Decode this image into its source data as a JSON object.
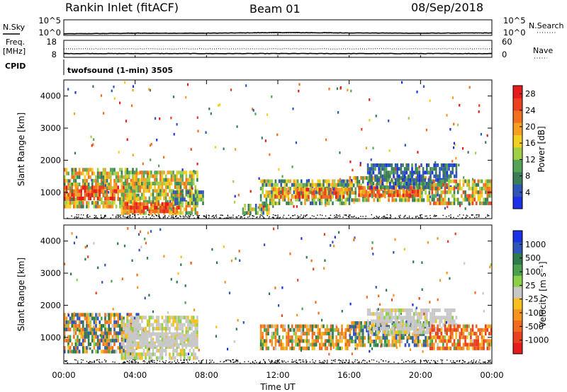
{
  "header": {
    "station": "Rankin Inlet (fitACF)",
    "beam": "Beam 01",
    "date": "08/Sep/2018"
  },
  "side_labels": {
    "nsky": "N.Sky",
    "nsearch": "N.Search",
    "freq": "Freq.",
    "freq_unit": "[MHz]",
    "nave": "Nave",
    "cpid": "CPID"
  },
  "cpid_text": "twofsound (1-min) 3505",
  "colors": {
    "axis": "#000000",
    "scatter_dots": "#000000"
  },
  "chart_data": [
    {
      "type": "line",
      "name": "noise",
      "left_ticks": [
        "10^5",
        "10^0"
      ],
      "right_ticks": [
        "10^5",
        "10^0"
      ],
      "x": [
        "00:00",
        "04:00",
        "08:00",
        "12:00",
        "16:00",
        "20:00",
        "00:00"
      ],
      "series": [
        {
          "name": "N.Sky",
          "style": "solid",
          "values_log10": [
            0.5,
            0.7,
            0.7,
            0.9,
            0.8,
            0.7,
            0.8
          ]
        },
        {
          "name": "N.Search",
          "style": "dotted",
          "values_log10": [
            0.5,
            0.6,
            0.7,
            0.8,
            0.7,
            0.7,
            0.7
          ]
        }
      ],
      "ylim": [
        0,
        5
      ]
    },
    {
      "type": "line",
      "name": "frequency",
      "left_ticks": [
        "18",
        "8"
      ],
      "right_ticks": [
        "60",
        "0"
      ],
      "x": [
        "00:00",
        "04:00",
        "08:00",
        "12:00",
        "16:00",
        "20:00",
        "00:00"
      ],
      "series": [
        {
          "name": "Freq",
          "unit": "MHz",
          "style": "solid",
          "values": [
            10.2,
            10.2,
            10.2,
            10.2,
            10.2,
            10.2,
            10.2
          ],
          "ylim": [
            8,
            18
          ]
        },
        {
          "name": "Nave",
          "style": "dotted",
          "values": [
            30,
            30,
            30,
            30,
            30,
            30,
            30
          ],
          "ylim": [
            0,
            60
          ]
        }
      ]
    },
    {
      "type": "heatmap",
      "name": "power",
      "ylabel": "Slant Range [km]",
      "ylim": [
        180,
        4500
      ],
      "yticks": [
        "1000",
        "2000",
        "3000",
        "4000"
      ],
      "xlim_hours": [
        0,
        24
      ],
      "xticks_hours": [
        0,
        4,
        8,
        12,
        16,
        20,
        24
      ],
      "colorbar": {
        "label": "Power [dB]",
        "ticks": [
          "4",
          "8",
          "12",
          "16",
          "20",
          "24",
          "28"
        ],
        "range": [
          0,
          30
        ],
        "colors": [
          "#1c30e6",
          "#2f55b8",
          "#3b7d58",
          "#55a356",
          "#a0cf48",
          "#f2d020",
          "#f5a020",
          "#f07020",
          "#ea4020",
          "#e61c1c"
        ]
      },
      "regions": [
        {
          "t": [
            0.0,
            4.2
          ],
          "r": [
            500,
            1700
          ],
          "v": [
            6,
            24
          ]
        },
        {
          "t": [
            0.0,
            3.5
          ],
          "r": [
            750,
            1150
          ],
          "v": [
            18,
            30
          ]
        },
        {
          "t": [
            3.2,
            7.5
          ],
          "r": [
            300,
            1650
          ],
          "v": [
            8,
            22
          ]
        },
        {
          "t": [
            3.3,
            6.5
          ],
          "r": [
            350,
            650
          ],
          "v": [
            20,
            30
          ]
        },
        {
          "t": [
            6.0,
            7.8
          ],
          "r": [
            600,
            1000
          ],
          "v": [
            4,
            16
          ]
        },
        {
          "t": [
            10.0,
            11.5
          ],
          "r": [
            300,
            600
          ],
          "v": [
            4,
            22
          ]
        },
        {
          "t": [
            11.0,
            16.0
          ],
          "r": [
            600,
            1400
          ],
          "v": [
            4,
            20
          ]
        },
        {
          "t": [
            11.5,
            16.0
          ],
          "r": [
            800,
            1100
          ],
          "v": [
            16,
            28
          ]
        },
        {
          "t": [
            16.0,
            20.5
          ],
          "r": [
            700,
            1400
          ],
          "v": [
            6,
            24
          ]
        },
        {
          "t": [
            16.5,
            20.0
          ],
          "r": [
            850,
            1100
          ],
          "v": [
            18,
            28
          ]
        },
        {
          "t": [
            17.0,
            22.0
          ],
          "r": [
            1100,
            1900
          ],
          "v": [
            2,
            10
          ]
        },
        {
          "t": [
            20.5,
            24.0
          ],
          "r": [
            600,
            1300
          ],
          "v": [
            6,
            26
          ]
        }
      ]
    },
    {
      "type": "heatmap",
      "name": "velocity",
      "ylabel": "Slant Range [km]",
      "ylim": [
        180,
        4500
      ],
      "yticks": [
        "1000",
        "2000",
        "3000",
        "4000"
      ],
      "xlabel": "Time UT",
      "xlim_hours": [
        0,
        24
      ],
      "xticks": [
        "00:00",
        "04:00",
        "08:00",
        "12:00",
        "16:00",
        "20:00",
        "00:00"
      ],
      "colorbar": {
        "label": "Velocity [m s⁻¹]",
        "ticks": [
          "1000",
          "500",
          "100",
          "25",
          "-25",
          "-100",
          "-500",
          "-1000"
        ],
        "colors": [
          "#1c30e6",
          "#2f55b8",
          "#2e7a4a",
          "#4aa04c",
          "#8bd048",
          "#c8c8c8",
          "#f5c020",
          "#f59520",
          "#f06a20",
          "#ea4020",
          "#e61c1c"
        ]
      },
      "regions": [
        {
          "t": [
            0.0,
            4.2
          ],
          "r": [
            500,
            1700
          ],
          "v": [
            -500,
            500
          ]
        },
        {
          "t": [
            3.2,
            7.5
          ],
          "r": [
            300,
            1650
          ],
          "v": [
            -40,
            40
          ]
        },
        {
          "t": [
            3.5,
            7.5
          ],
          "r": [
            700,
            1100
          ],
          "v": [
            -20,
            20
          ]
        },
        {
          "t": [
            11.0,
            16.0
          ],
          "r": [
            600,
            1400
          ],
          "v": [
            -500,
            200
          ]
        },
        {
          "t": [
            16.0,
            20.5
          ],
          "r": [
            700,
            1400
          ],
          "v": [
            -300,
            500
          ]
        },
        {
          "t": [
            17.0,
            22.0
          ],
          "r": [
            1100,
            1900
          ],
          "v": [
            -30,
            30
          ]
        },
        {
          "t": [
            20.5,
            24.0
          ],
          "r": [
            600,
            1300
          ],
          "v": [
            -900,
            100
          ]
        }
      ]
    }
  ]
}
